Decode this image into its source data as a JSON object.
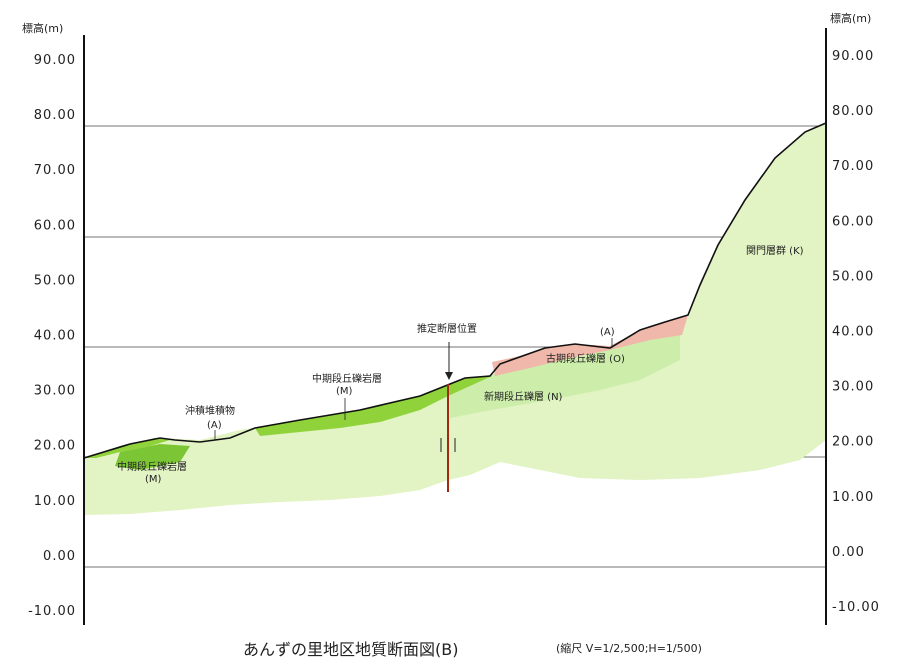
{
  "axis": {
    "left_title": "標高(m)",
    "right_title": "標高(m)",
    "ticks": [
      "90.00",
      "80.00",
      "70.00",
      "60.00",
      "50.00",
      "40.00",
      "30.00",
      "20.00",
      "10.00",
      "0.00",
      "-10.00"
    ]
  },
  "labels": {
    "alluvium": "沖積堆積物",
    "alluvium_code": "(A)",
    "middle_terrace_upper": "中期段丘礫岩層",
    "middle_terrace_upper_code": "(M)",
    "middle_terrace_lower": "中期段丘礫岩層",
    "middle_terrace_lower_code": "(M)",
    "fault": "推定断層位置",
    "new_terrace": "新期段丘礫層 (N)",
    "old_terrace": "古期段丘礫層 (O)",
    "old_alluvium_code": "(A)",
    "kanmon": "関門層群 (K)"
  },
  "caption": {
    "title": "あんずの里地区地質断面図(B)",
    "scale": "(縮尺 V=1/2,500;H=1/500)"
  },
  "colors": {
    "kanmon": "#e2f3c4",
    "middle_terrace": "#8fd23a",
    "old_terrace": "#f0b8aa",
    "new_terrace": "#c8eba0",
    "fault": "#a32a10",
    "gridline": "#444444"
  }
}
